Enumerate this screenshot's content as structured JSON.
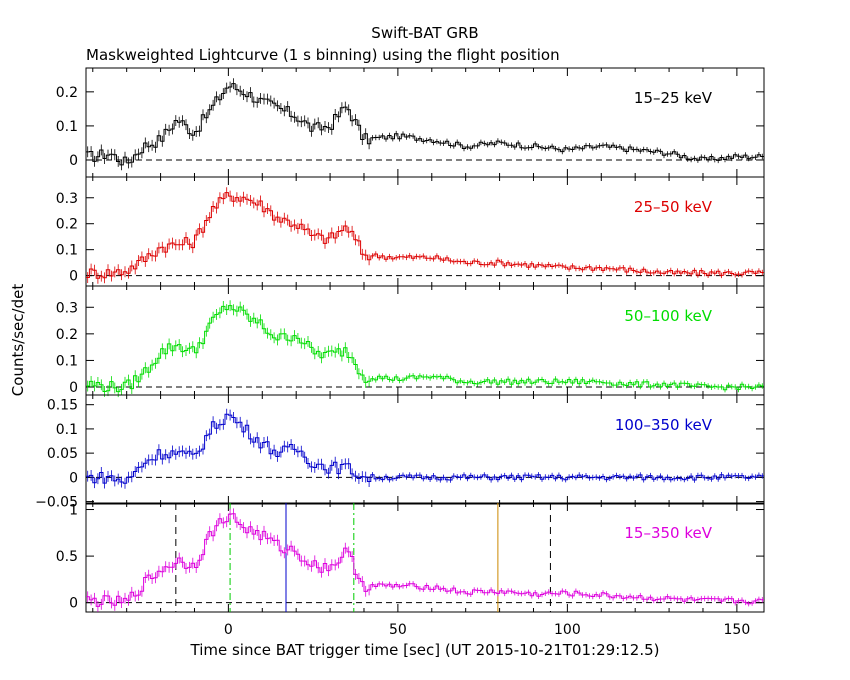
{
  "chart_data": {
    "type": "line",
    "title": "Swift-BAT GRB",
    "subtitle": "Maskweighted Lightcurve (1 s binning) using the flight position",
    "xlabel": "Time since BAT trigger time [sec] (UT 2015-10-21T01:29:12.5)",
    "ylabel": "Counts/sec/det",
    "xlim": [
      -42,
      158
    ],
    "x_ticks": [
      "0",
      "50",
      "100",
      "150"
    ],
    "x_tick_values": [
      0,
      50,
      100,
      150
    ],
    "panels": [
      {
        "name": "15–25 keV",
        "color": "#000000",
        "ylim": [
          -0.05,
          0.27
        ],
        "y_ticks": [
          0,
          0.1,
          0.2
        ],
        "y_tick_labels": [
          "0",
          "0.1",
          "0.2"
        ],
        "x": [
          -40,
          -35,
          -30,
          -25,
          -20,
          -15,
          -10,
          -5,
          0,
          5,
          10,
          15,
          20,
          25,
          30,
          35,
          40,
          50,
          60,
          70,
          80,
          90,
          100,
          110,
          120,
          130,
          140,
          150,
          158
        ],
        "y": [
          0.01,
          0.02,
          -0.01,
          0.04,
          0.06,
          0.12,
          0.08,
          0.15,
          0.22,
          0.2,
          0.17,
          0.15,
          0.13,
          0.09,
          0.1,
          0.16,
          0.06,
          0.07,
          0.06,
          0.04,
          0.05,
          0.04,
          0.03,
          0.04,
          0.03,
          0.02,
          0.0,
          0.01,
          0.01
        ]
      },
      {
        "name": "25–50 keV",
        "color": "#dd0000",
        "ylim": [
          -0.04,
          0.38
        ],
        "y_ticks": [
          0,
          0.1,
          0.2,
          0.3
        ],
        "y_tick_labels": [
          "0",
          "0.1",
          "0.2",
          "0.3"
        ],
        "x": [
          -40,
          -35,
          -30,
          -25,
          -20,
          -15,
          -10,
          -5,
          0,
          5,
          10,
          15,
          20,
          25,
          30,
          35,
          40,
          50,
          60,
          70,
          80,
          90,
          100,
          110,
          120,
          130,
          140,
          150,
          158
        ],
        "y": [
          0.01,
          0.01,
          0.02,
          0.06,
          0.11,
          0.12,
          0.13,
          0.25,
          0.31,
          0.3,
          0.27,
          0.22,
          0.2,
          0.15,
          0.14,
          0.19,
          0.08,
          0.07,
          0.07,
          0.05,
          0.05,
          0.04,
          0.03,
          0.03,
          0.02,
          0.01,
          0.01,
          0.01,
          0.01
        ]
      },
      {
        "name": "50–100 keV",
        "color": "#00dd00",
        "ylim": [
          -0.03,
          0.38
        ],
        "y_ticks": [
          0,
          0.1,
          0.2,
          0.3
        ],
        "y_tick_labels": [
          "0",
          "0.1",
          "0.2",
          "0.3"
        ],
        "x": [
          -40,
          -35,
          -30,
          -25,
          -20,
          -15,
          -10,
          -5,
          0,
          5,
          10,
          15,
          20,
          25,
          30,
          35,
          40,
          50,
          60,
          70,
          80,
          90,
          100,
          110,
          120,
          130,
          140,
          150,
          158
        ],
        "y": [
          0.01,
          0.0,
          0.0,
          0.05,
          0.13,
          0.16,
          0.13,
          0.24,
          0.31,
          0.27,
          0.23,
          0.18,
          0.2,
          0.13,
          0.12,
          0.14,
          0.04,
          0.03,
          0.04,
          0.02,
          0.02,
          0.02,
          0.02,
          0.02,
          0.01,
          0.01,
          0.0,
          0.0,
          0.0
        ]
      },
      {
        "name": "100–350 keV",
        "color": "#0000cc",
        "ylim": [
          -0.055,
          0.17
        ],
        "y_ticks": [
          -0.05,
          0,
          0.05,
          0.1,
          0.15
        ],
        "y_tick_labels": [
          "−0.05",
          "0",
          "0.05",
          "0.1",
          "0.15"
        ],
        "x": [
          -40,
          -35,
          -30,
          -25,
          -20,
          -15,
          -10,
          -5,
          0,
          5,
          10,
          15,
          20,
          25,
          30,
          35,
          40,
          50,
          60,
          70,
          80,
          90,
          100,
          110,
          120,
          130,
          140,
          150,
          158
        ],
        "y": [
          0.0,
          0.0,
          -0.01,
          0.03,
          0.05,
          0.05,
          0.04,
          0.1,
          0.13,
          0.1,
          0.07,
          0.05,
          0.06,
          0.03,
          0.02,
          0.02,
          0.0,
          0.0,
          0.0,
          0.0,
          0.0,
          0.0,
          0.0,
          0.0,
          0.0,
          0.0,
          0.0,
          0.0,
          0.0
        ]
      },
      {
        "name": "15–350 keV",
        "color": "#dd00dd",
        "ylim": [
          -0.1,
          1.07
        ],
        "y_ticks": [
          0,
          0.5,
          1
        ],
        "y_tick_labels": [
          "0",
          "0.5",
          "1"
        ],
        "x": [
          -40,
          -35,
          -30,
          -25,
          -20,
          -15,
          -10,
          -5,
          0,
          5,
          10,
          15,
          20,
          25,
          30,
          35,
          40,
          50,
          60,
          70,
          80,
          90,
          100,
          110,
          120,
          130,
          140,
          150,
          158
        ],
        "y": [
          0.02,
          0.01,
          0.0,
          0.2,
          0.35,
          0.45,
          0.4,
          0.75,
          0.95,
          0.8,
          0.72,
          0.6,
          0.55,
          0.4,
          0.38,
          0.55,
          0.18,
          0.18,
          0.17,
          0.11,
          0.12,
          0.09,
          0.1,
          0.08,
          0.06,
          0.04,
          0.02,
          0.02,
          0.01
        ]
      }
    ],
    "markers": [
      {
        "x": -15.5,
        "color": "#000000",
        "style": "dashed"
      },
      {
        "x": 0.5,
        "color": "#00cc00",
        "style": "dashdot"
      },
      {
        "x": 17,
        "color": "#0000cc",
        "style": "solid"
      },
      {
        "x": 37,
        "color": "#00cc00",
        "style": "dashdot"
      },
      {
        "x": 79.5,
        "color": "#cc8800",
        "style": "solid"
      },
      {
        "x": 95,
        "color": "#000000",
        "style": "dashed"
      }
    ]
  }
}
